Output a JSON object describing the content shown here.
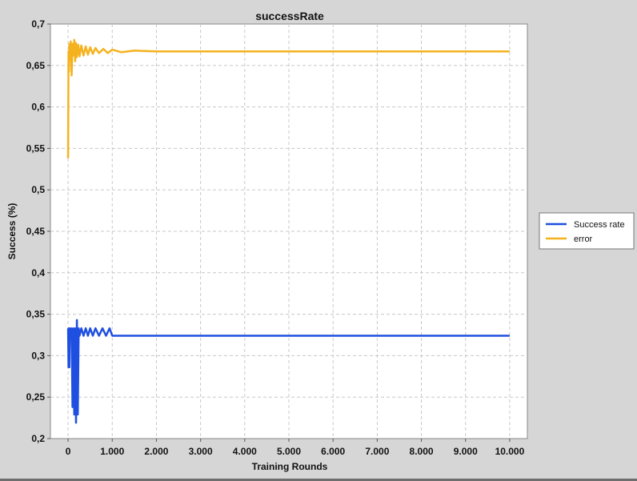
{
  "chart_data": {
    "type": "line",
    "title": "successRate",
    "xlabel": "Training Rounds",
    "ylabel": "Success (%)",
    "xlim": [
      -400,
      10400
    ],
    "ylim": [
      0.2,
      0.7
    ],
    "x_ticks": [
      0,
      1000,
      2000,
      3000,
      4000,
      5000,
      6000,
      7000,
      8000,
      9000,
      10000
    ],
    "x_tick_labels": [
      "0",
      "1.000",
      "2.000",
      "3.000",
      "4.000",
      "5.000",
      "6.000",
      "7.000",
      "8.000",
      "9.000",
      "10.000"
    ],
    "y_ticks": [
      0.2,
      0.25,
      0.3,
      0.35,
      0.4,
      0.45,
      0.5,
      0.55,
      0.6,
      0.65,
      0.7
    ],
    "y_tick_labels": [
      "0,2",
      "0,25",
      "0,3",
      "0,35",
      "0,4",
      "0,45",
      "0,5",
      "0,55",
      "0,6",
      "0,65",
      "0,7"
    ],
    "grid": true,
    "legend_position": "right",
    "series": [
      {
        "name": "Success rate",
        "color": "#1f4fe0",
        "x": [
          0,
          10,
          20,
          30,
          40,
          60,
          80,
          100,
          120,
          140,
          160,
          180,
          200,
          220,
          240,
          260,
          300,
          350,
          400,
          450,
          500,
          560,
          620,
          700,
          780,
          860,
          940,
          1000,
          2000,
          4000,
          6000,
          8000,
          10000
        ],
        "y": [
          0.333,
          0.286,
          0.333,
          0.286,
          0.333,
          0.324,
          0.333,
          0.238,
          0.333,
          0.229,
          0.333,
          0.219,
          0.343,
          0.229,
          0.333,
          0.324,
          0.333,
          0.324,
          0.333,
          0.324,
          0.333,
          0.324,
          0.333,
          0.324,
          0.333,
          0.324,
          0.333,
          0.324,
          0.324,
          0.324,
          0.324,
          0.324,
          0.324
        ]
      },
      {
        "name": "error",
        "color": "#f5b21f",
        "x": [
          0,
          10,
          20,
          30,
          40,
          60,
          80,
          100,
          120,
          140,
          160,
          180,
          200,
          230,
          260,
          300,
          350,
          400,
          450,
          500,
          560,
          620,
          700,
          800,
          900,
          1000,
          1200,
          1500,
          2000,
          3000,
          4000,
          6000,
          8000,
          10000
        ],
        "y": [
          0.538,
          0.667,
          0.643,
          0.676,
          0.657,
          0.679,
          0.638,
          0.676,
          0.662,
          0.681,
          0.655,
          0.677,
          0.66,
          0.675,
          0.661,
          0.674,
          0.662,
          0.673,
          0.663,
          0.672,
          0.664,
          0.671,
          0.665,
          0.67,
          0.665,
          0.669,
          0.666,
          0.668,
          0.667,
          0.667,
          0.667,
          0.667,
          0.667,
          0.667
        ]
      }
    ]
  }
}
